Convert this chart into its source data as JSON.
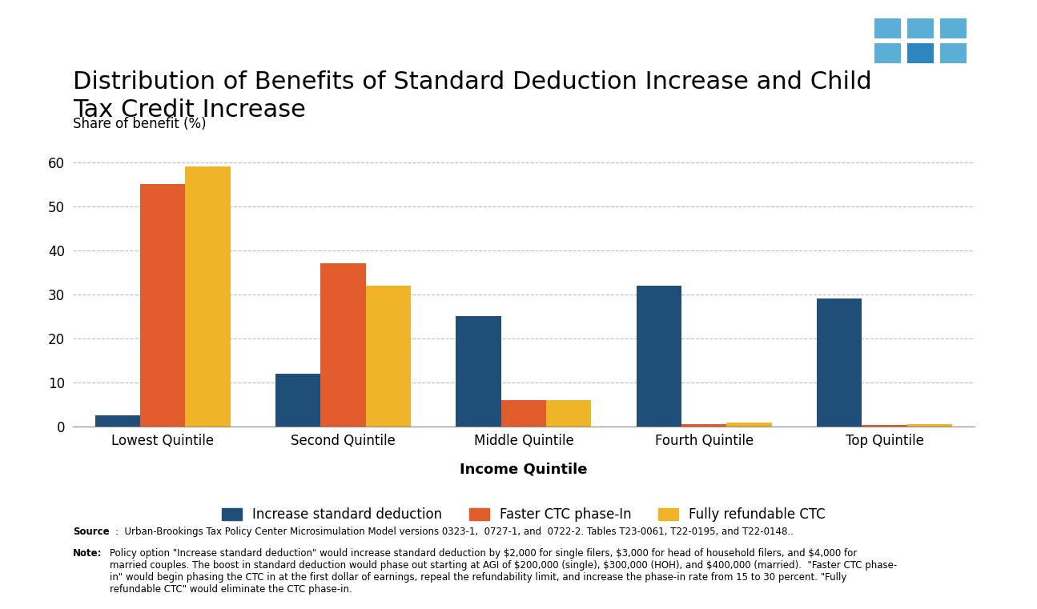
{
  "title": "Distribution of Benefits of Standard Deduction Increase and Child\nTax Credit Increase",
  "ylabel": "Share of benefit (%)",
  "xlabel": "Income Quintile",
  "categories": [
    "Lowest Quintile",
    "Second Quintile",
    "Middle Quintile",
    "Fourth Quintile",
    "Top Quintile"
  ],
  "series": {
    "Increase standard deduction": [
      2.5,
      12.0,
      25.0,
      32.0,
      29.0
    ],
    "Faster CTC phase-In": [
      55.0,
      37.0,
      6.0,
      0.5,
      0.3
    ],
    "Fully refundable CTC": [
      59.0,
      32.0,
      6.0,
      0.8,
      0.5
    ]
  },
  "colors": {
    "Increase standard deduction": "#1F4E79",
    "Faster CTC phase-In": "#E05C2A",
    "Fully refundable CTC": "#F0B429"
  },
  "ylim": [
    0,
    65
  ],
  "yticks": [
    0,
    10,
    20,
    30,
    40,
    50,
    60
  ],
  "bar_width": 0.25,
  "background_color": "#FFFFFF",
  "grid_color": "#BBBBBB",
  "title_fontsize": 22,
  "ylabel_fontsize": 12,
  "xlabel_fontsize": 13,
  "tick_fontsize": 12,
  "legend_fontsize": 12,
  "source_bold": "Source",
  "source_rest": ":  Urban-Brookings Tax Policy Center Microsimulation Model versions 0323-1,  0727-1, and  0722-2. Tables T23-0061, T22-0195, and T22-0148..",
  "note_bold": "Note:",
  "note_rest": "Policy option \"Increase standard deduction\" would increase standard deduction by $2,000 for single filers, $3,000 for head of household filers, and $4,000 for\nmarried couples. The boost in standard deduction would phase out starting at AGI of $200,000 (single), $300,000 (HOH), and $400,000 (married).  \"Faster CTC phase-\nin\" would begin phasing the CTC in at the first dollar of earnings, repeal the refundability limit, and increase the phase-in rate from 15 to 30 percent. \"Fully\nrefundable CTC\" would eliminate the CTC phase-in.",
  "tpc_logo_bg": "#1B4F72",
  "tpc_logo_light": "#5BAFD6",
  "tpc_logo_dark": "#2E86C1"
}
